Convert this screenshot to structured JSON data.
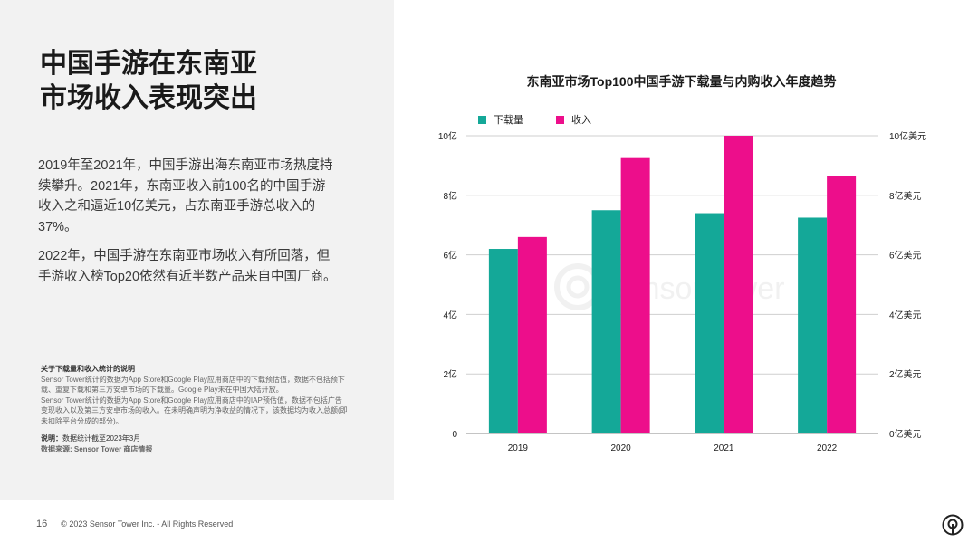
{
  "left_panel": {
    "title_lines": [
      "中国手游在东南亚",
      "市场收入表现突出"
    ],
    "paragraphs": [
      "2019年至2021年，中国手游出海东南亚市场热度持续攀升。2021年，东南亚收入前100名的中国手游收入之和逼近10亿美元，占东南亚手游总收入的37%。",
      "2022年，中国手游在东南亚市场收入有所回落，但手游收入榜Top20依然有近半数产品来自中国厂商。"
    ],
    "notes": {
      "heading": "关于下载量和收入统计的说明",
      "lines": [
        "Sensor Tower统计的数据为App Store和Google Play应用商店中的下载预估值，数据不包括预下载、重复下载和第三方安卓市场的下载量。Google Play未在中国大陆开放。",
        "Sensor Tower统计的数据为App Store和Google Play应用商店中的IAP预估值，数据不包括广告变现收入以及第三方安卓市场的收入。在未明确声明为净收益的情况下，该数据均为收入总额(即未扣除平台分成的部分)。"
      ],
      "explain_label": "说明：",
      "explain_value": "数据统计截至2023年3月",
      "source_label": "数据来源: ",
      "source_value": "Sensor Tower 商店情报"
    }
  },
  "footer": {
    "page_number": "16",
    "copyright": "© 2023 Sensor Tower Inc. - All Rights Reserved",
    "logo_icon": "sensor-tower-logo-icon"
  },
  "chart_data": {
    "type": "bar",
    "title": "东南亚市场Top100中国手游下载量与内购收入年度趋势",
    "categories": [
      "2019",
      "2020",
      "2021",
      "2022"
    ],
    "series": [
      {
        "name": "下载量",
        "axis": "left",
        "color": "#14a898",
        "values": [
          6.2,
          7.5,
          7.4,
          7.25
        ]
      },
      {
        "name": "收入",
        "axis": "right",
        "color": "#ed0e8b",
        "values": [
          6.6,
          9.25,
          10.0,
          8.65
        ]
      }
    ],
    "y_left": {
      "ylim": [
        0,
        10
      ],
      "ticks": [
        "0",
        "2亿",
        "4亿",
        "6亿",
        "8亿",
        "10亿"
      ]
    },
    "y_right": {
      "ylim": [
        0,
        10
      ],
      "ticks": [
        "0亿美元",
        "2亿美元",
        "4亿美元",
        "6亿美元",
        "8亿美元",
        "10亿美元"
      ]
    },
    "legend_position": "top-left",
    "grid": true,
    "watermark": "SensorTower"
  }
}
